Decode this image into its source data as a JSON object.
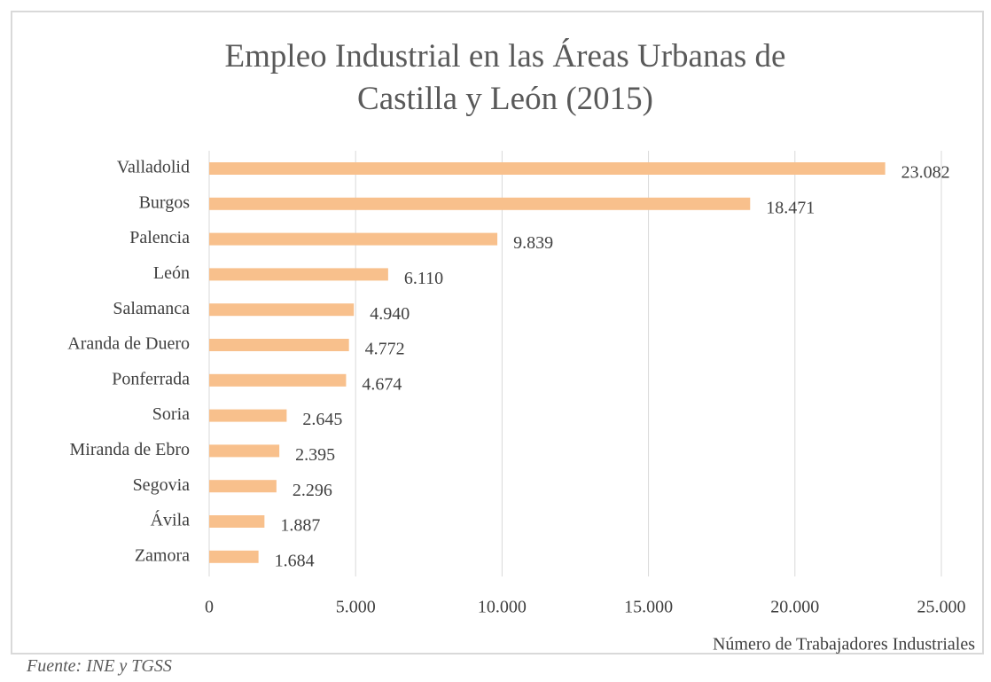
{
  "chart_data": {
    "type": "bar",
    "orientation": "horizontal",
    "title": "Empleo Industrial en las Áreas Urbanas de Castilla y León (2015)",
    "x_label": "Número de Trabajadores Industriales",
    "source": "Fuente: INE y TGSS",
    "categories": [
      "Valladolid",
      "Burgos",
      "Palencia",
      "León",
      "Salamanca",
      "Aranda de Duero",
      "Ponferrada",
      "Soria",
      "Miranda de Ebro",
      "Segovia",
      "Ávila",
      "Zamora"
    ],
    "values": [
      23082,
      18471,
      9839,
      6110,
      4940,
      4772,
      4674,
      2645,
      2395,
      2296,
      1887,
      1684
    ],
    "value_labels": [
      "23.082",
      "18.471",
      "9.839",
      "6.110",
      "4.940",
      "4.772",
      "4.674",
      "2.645",
      "2.395",
      "2.296",
      "1.887",
      "1.684"
    ],
    "color": "#f8c08c",
    "xlim": [
      0,
      25000
    ],
    "xticks": [
      0,
      {
        "value": 5000,
        "label": "5.000"
      },
      {
        "value": 10000,
        "label": "10.000"
      },
      {
        "value": 15000,
        "label": "15.000"
      },
      {
        "value": 20000,
        "label": "20.000"
      },
      {
        "value": 25000,
        "label": "25.000"
      }
    ],
    "grid": true
  }
}
